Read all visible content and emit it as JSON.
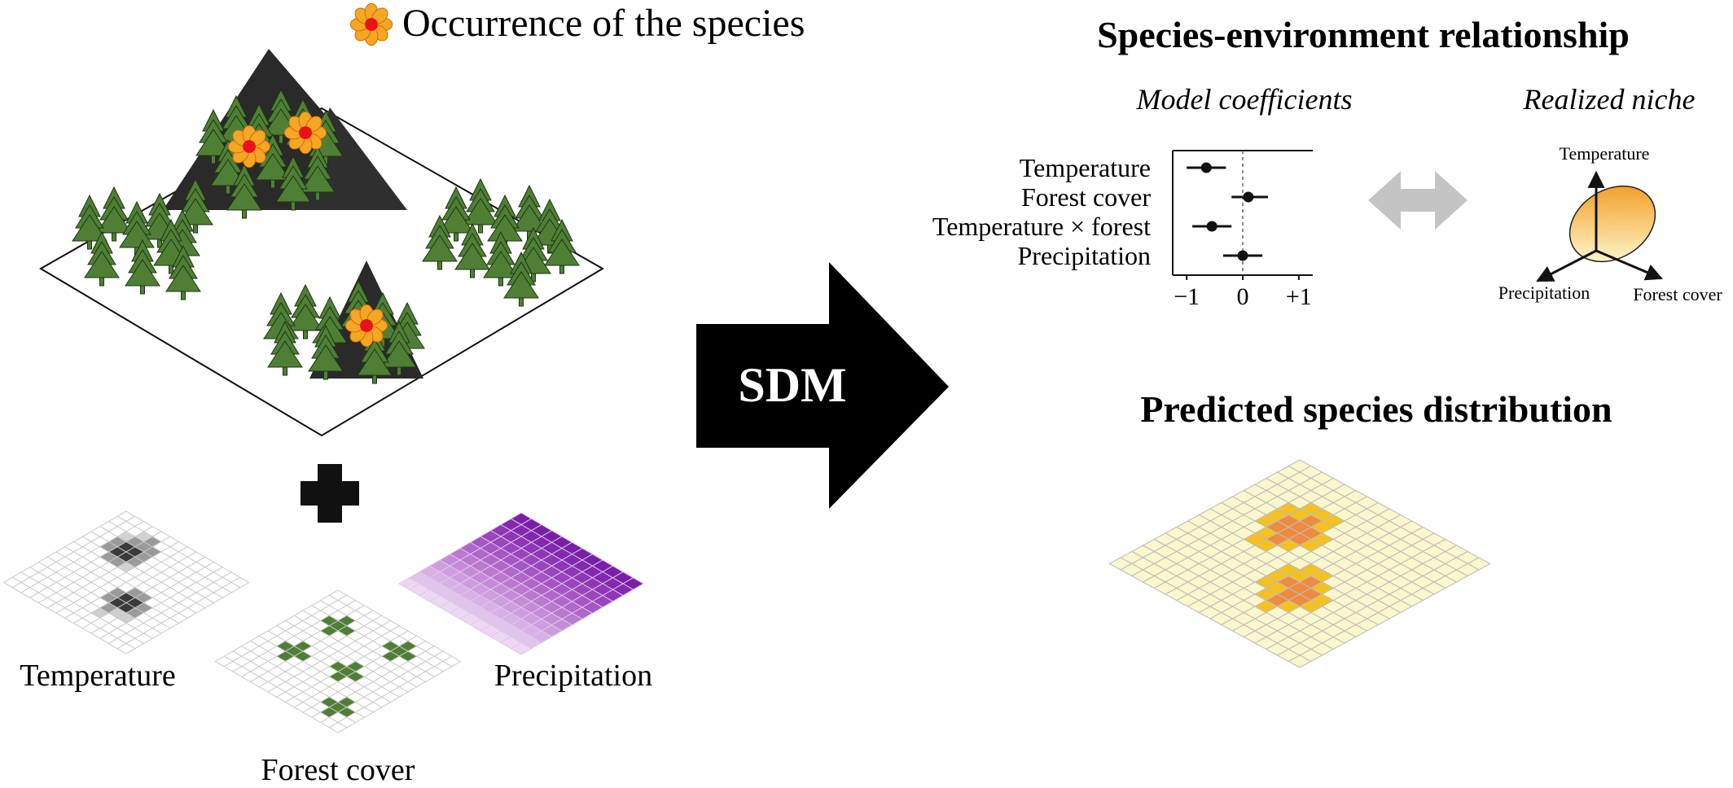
{
  "colors": {
    "forest_green": "#4f7f35",
    "tree_outline": "#1d3512",
    "mountain": "#2a2a2a",
    "flower_petal": "#f5a623",
    "flower_center": "#e8121b",
    "precip_dark": "#7a1ea8",
    "precip_light": "#e6d6f0",
    "dist_pale": "#fbf7cc",
    "dist_mid": "#f6c11c",
    "dist_high": "#f08a3c",
    "niche_grad_start": "#f29a1f",
    "niche_grad_end": "#fdf5c9",
    "double_arrow": "#c4c4c4"
  },
  "legend": {
    "icon": "flower-icon",
    "label": "Occurrence of  the species"
  },
  "layers": {
    "temperature": "Temperature",
    "forest_cover": "Forest cover",
    "precipitation": "Precipitation"
  },
  "plus_icon": "plus-icon",
  "arrow": {
    "icon": "right-arrow-icon",
    "label": "SDM"
  },
  "relationship": {
    "title": "Species-environment relationship",
    "coef_subtitle": "Model coefficients",
    "niche_subtitle": "Realized niche",
    "double_arrow_icon": "double-arrow-icon",
    "niche_axes": {
      "up": "Temperature",
      "left": "Precipitation",
      "right": "Forest cover"
    }
  },
  "chart_data": {
    "type": "scatter",
    "orientation": "horizontal",
    "categories": [
      "Temperature",
      "Forest cover",
      "Temperature × forest",
      "Precipitation"
    ],
    "estimates": [
      -0.65,
      0.1,
      -0.55,
      0.0
    ],
    "lower": [
      -1.0,
      -0.2,
      -0.9,
      -0.35
    ],
    "upper": [
      -0.3,
      0.45,
      -0.2,
      0.35
    ],
    "xlim": [
      -1.25,
      1.25
    ],
    "xticks": [
      -1,
      0,
      1
    ],
    "xtick_labels": [
      "−1",
      "0",
      "+1"
    ],
    "reference_line": 0
  },
  "prediction": {
    "title": "Predicted species distribution"
  }
}
